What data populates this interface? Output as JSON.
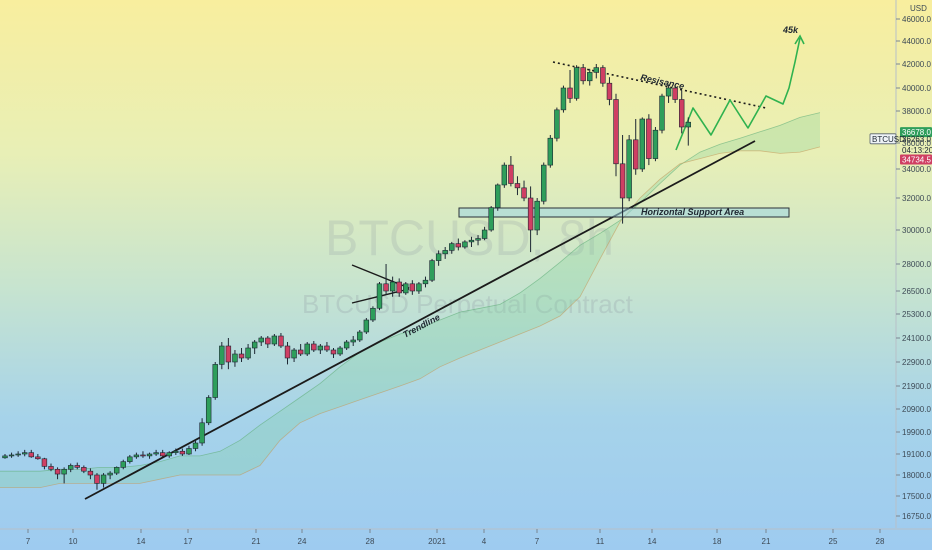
{
  "chart_data": {
    "type": "candlestick",
    "symbol": "BTCUSD",
    "timeframe": "8h",
    "watermark": {
      "line1": "BTCUSD, 8h",
      "line2": "BTCUSD Perpetual Contract"
    },
    "currency_label": "USD",
    "y_axis": {
      "ticks": [
        16750,
        17500,
        18000,
        19100,
        19900,
        20900,
        21900,
        22900,
        24100,
        25300,
        26500,
        28000,
        30000,
        32000,
        34000,
        36000,
        38000,
        40000,
        42000,
        44000,
        46000
      ],
      "tick_labels": [
        "16750.0",
        "17500.0",
        "18000.0",
        "19100.0",
        "19900.0",
        "20900.0",
        "21900.0",
        "22900.0",
        "24100.0",
        "25300.0",
        "26500.0",
        "28000.0",
        "30000.0",
        "32000.0",
        "34000.0",
        "36000.0",
        "38000.0",
        "40000.0",
        "42000.0",
        "44000.0",
        "46000.0"
      ]
    },
    "x_axis": {
      "labels": [
        "7",
        "10",
        "14",
        "17",
        "21",
        "24",
        "28",
        "2021",
        "4",
        "7",
        "11",
        "14",
        "18",
        "21",
        "25",
        "28"
      ],
      "label_pos": [
        28,
        73,
        141,
        188,
        256,
        302,
        370,
        437,
        484,
        537,
        600,
        652,
        717,
        766,
        833,
        880
      ]
    },
    "price_tags": [
      {
        "label": "36678.0",
        "value": 36678,
        "style": "green"
      },
      {
        "label": "BTCUSD",
        "value": 36263,
        "style": "outline"
      },
      {
        "label": "36263.0",
        "value": 36263,
        "style": "plain"
      },
      {
        "label": "04:13:20",
        "value": 35450,
        "style": "plain"
      },
      {
        "label": "34734.5",
        "value": 34734.5,
        "style": "red"
      }
    ],
    "annotations": [
      {
        "kind": "text",
        "text": "45k"
      },
      {
        "kind": "text",
        "text": "Resisance"
      },
      {
        "kind": "text",
        "text": "Horizontal Support Area"
      },
      {
        "kind": "text",
        "text": "Trendline"
      }
    ],
    "candles": [
      [
        18900,
        19100,
        18850,
        19000
      ],
      [
        19000,
        19150,
        18900,
        19050
      ],
      [
        19050,
        19200,
        18950,
        19100
      ],
      [
        19100,
        19250,
        18980,
        19150
      ],
      [
        19150,
        19250,
        18900,
        18950
      ],
      [
        18950,
        19100,
        18800,
        18850
      ],
      [
        18850,
        18900,
        18300,
        18450
      ],
      [
        18450,
        18600,
        18200,
        18300
      ],
      [
        18300,
        18400,
        17900,
        18050
      ],
      [
        18050,
        18400,
        17800,
        18300
      ],
      [
        18300,
        18600,
        18150,
        18500
      ],
      [
        18500,
        18650,
        18300,
        18400
      ],
      [
        18400,
        18500,
        18100,
        18200
      ],
      [
        18200,
        18350,
        17900,
        18000
      ],
      [
        18000,
        18100,
        17650,
        17800
      ],
      [
        17800,
        18100,
        17700,
        18000
      ],
      [
        18000,
        18200,
        17900,
        18100
      ],
      [
        18100,
        18450,
        18000,
        18400
      ],
      [
        18400,
        18800,
        18300,
        18700
      ],
      [
        18700,
        19050,
        18600,
        18950
      ],
      [
        18950,
        19150,
        18850,
        19050
      ],
      [
        19050,
        19200,
        18900,
        19000
      ],
      [
        19000,
        19150,
        18850,
        19100
      ],
      [
        19100,
        19250,
        19000,
        19150
      ],
      [
        19150,
        19250,
        18950,
        19000
      ],
      [
        19000,
        19200,
        18900,
        19150
      ],
      [
        19150,
        19300,
        19050,
        19200
      ],
      [
        19200,
        19300,
        19000,
        19100
      ],
      [
        19100,
        19400,
        19050,
        19300
      ],
      [
        19300,
        19600,
        19200,
        19500
      ],
      [
        19500,
        20500,
        19400,
        20300
      ],
      [
        20300,
        21500,
        20200,
        21400
      ],
      [
        21400,
        22900,
        21300,
        22800
      ],
      [
        22800,
        23900,
        22600,
        23700
      ],
      [
        23700,
        24100,
        22600,
        22900
      ],
      [
        22900,
        23500,
        22700,
        23300
      ],
      [
        23300,
        23600,
        22900,
        23100
      ],
      [
        23100,
        23800,
        23000,
        23600
      ],
      [
        23600,
        24000,
        23300,
        23900
      ],
      [
        23900,
        24200,
        23700,
        24100
      ],
      [
        24100,
        24200,
        23600,
        23800
      ],
      [
        23800,
        24300,
        23700,
        24200
      ],
      [
        24200,
        24350,
        23600,
        23700
      ],
      [
        23700,
        23900,
        22800,
        23100
      ],
      [
        23100,
        23600,
        22900,
        23500
      ],
      [
        23500,
        23800,
        23200,
        23300
      ],
      [
        23300,
        23900,
        23200,
        23800
      ],
      [
        23800,
        23950,
        23400,
        23500
      ],
      [
        23500,
        23800,
        23300,
        23700
      ],
      [
        23700,
        23900,
        23400,
        23500
      ],
      [
        23500,
        23600,
        23100,
        23300
      ],
      [
        23300,
        23700,
        23200,
        23600
      ],
      [
        23600,
        24000,
        23500,
        23900
      ],
      [
        23900,
        24200,
        23700,
        24000
      ],
      [
        24000,
        24500,
        23900,
        24400
      ],
      [
        24400,
        25100,
        24300,
        25000
      ],
      [
        25000,
        25700,
        24900,
        25600
      ],
      [
        25600,
        27000,
        25500,
        26900
      ],
      [
        26900,
        28000,
        26300,
        26500
      ],
      [
        26500,
        27300,
        26200,
        27000
      ],
      [
        27000,
        27200,
        26200,
        26400
      ],
      [
        26400,
        27000,
        26300,
        26900
      ],
      [
        26900,
        27100,
        26300,
        26500
      ],
      [
        26500,
        27000,
        26350,
        26900
      ],
      [
        26900,
        27300,
        26700,
        27100
      ],
      [
        27100,
        28300,
        27000,
        28200
      ],
      [
        28200,
        28800,
        27900,
        28600
      ],
      [
        28600,
        29000,
        28300,
        28800
      ],
      [
        28800,
        29300,
        28600,
        29200
      ],
      [
        29200,
        29500,
        28800,
        29000
      ],
      [
        29000,
        29400,
        28900,
        29300
      ],
      [
        29300,
        29600,
        29000,
        29400
      ],
      [
        29400,
        29700,
        29100,
        29500
      ],
      [
        29500,
        30200,
        29400,
        30000
      ],
      [
        30000,
        31500,
        29900,
        31400
      ],
      [
        31400,
        33000,
        31200,
        32900
      ],
      [
        32900,
        34500,
        32700,
        34300
      ],
      [
        34300,
        35000,
        32800,
        33000
      ],
      [
        33000,
        33500,
        32200,
        32700
      ],
      [
        32700,
        33200,
        31800,
        32000
      ],
      [
        32000,
        32800,
        28700,
        30000
      ],
      [
        30000,
        32000,
        29700,
        31800
      ],
      [
        31800,
        34500,
        31600,
        34300
      ],
      [
        34300,
        36500,
        34100,
        36300
      ],
      [
        36300,
        38300,
        36100,
        38100
      ],
      [
        38100,
        40200,
        37900,
        40000
      ],
      [
        40000,
        41500,
        38700,
        39100
      ],
      [
        39100,
        41900,
        38900,
        41700
      ],
      [
        41700,
        42000,
        40300,
        40600
      ],
      [
        40600,
        41600,
        40200,
        41300
      ],
      [
        41300,
        42000,
        40800,
        41700
      ],
      [
        41700,
        41900,
        40100,
        40400
      ],
      [
        40400,
        40900,
        38500,
        39000
      ],
      [
        39000,
        39500,
        33500,
        34400
      ],
      [
        34400,
        36500,
        30400,
        32000
      ],
      [
        32000,
        36500,
        31800,
        36200
      ],
      [
        36200,
        37500,
        33600,
        34000
      ],
      [
        34000,
        37600,
        33800,
        37500
      ],
      [
        37500,
        37800,
        34300,
        34800
      ],
      [
        34800,
        37000,
        34600,
        36800
      ],
      [
        36800,
        39500,
        36600,
        39300
      ],
      [
        39300,
        40300,
        38700,
        40000
      ],
      [
        40000,
        40200,
        38700,
        39000
      ],
      [
        39000,
        39800,
        36600,
        37000
      ],
      [
        37000,
        37600,
        35800,
        37300
      ]
    ],
    "ichimoku_cloud": {
      "span_a": [
        18200,
        18200,
        18200,
        18300,
        18300,
        18400,
        18400,
        18500,
        18700,
        19000,
        19000,
        19200,
        19600,
        20200,
        20800,
        21400,
        22000,
        22700,
        23400,
        23900,
        24300,
        24600,
        25000,
        25400,
        25600,
        25800,
        26400,
        27200,
        28100,
        29100,
        29800,
        30600,
        31700,
        33000,
        34300,
        35300,
        35900,
        36300,
        36700,
        37100,
        37600,
        37900
      ],
      "span_b": [
        17700,
        17700,
        17700,
        17800,
        17800,
        17800,
        17800,
        17800,
        17900,
        18000,
        18000,
        18000,
        18000,
        18500,
        19600,
        20300,
        20700,
        21000,
        21300,
        21600,
        21900,
        22200,
        22700,
        23100,
        23500,
        23900,
        24300,
        24700,
        25200,
        26200,
        28300,
        30500,
        32000,
        33300,
        34400,
        34800,
        35200,
        35400,
        35400,
        35200,
        35300,
        35700
      ]
    },
    "projection": [
      [
        39000,
        -9999
      ],
      [
        39400,
        6
      ],
      [
        37500,
        4
      ],
      [
        39300,
        3
      ],
      [
        37500,
        3
      ],
      [
        38900,
        3
      ],
      [
        38300,
        2
      ],
      [
        39400,
        3
      ],
      [
        42700,
        3
      ],
      [
        45600,
        3
      ]
    ]
  }
}
